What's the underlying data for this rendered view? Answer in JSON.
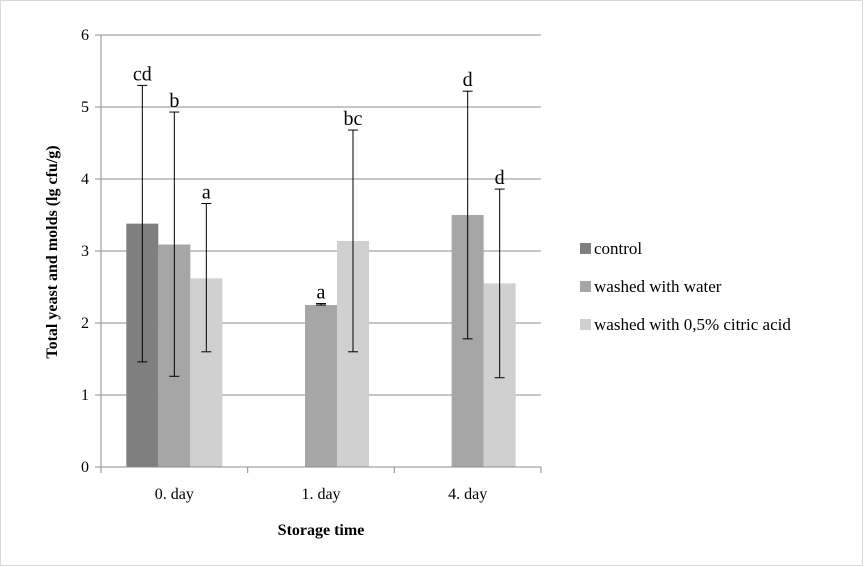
{
  "chart_data": {
    "type": "bar",
    "xlabel": "Storage time",
    "ylabel": "Total yeast and molds (lg cfu/g)",
    "ylim": [
      0,
      6
    ],
    "yticks": [
      "0",
      "1",
      "2",
      "3",
      "4",
      "5",
      "6"
    ],
    "grid": true,
    "legend_position": "right",
    "categories": [
      "0. day",
      "1. day",
      "4. day"
    ],
    "series": [
      {
        "name": "control",
        "color": "#7f7f7f",
        "values": [
          3.38,
          null,
          null
        ],
        "errors": [
          [
            1.46,
            5.3
          ],
          null,
          null
        ],
        "labels": [
          "cd",
          "",
          ""
        ]
      },
      {
        "name": "washed with water",
        "color": "#a6a6a6",
        "values": [
          3.09,
          2.25,
          3.5
        ],
        "errors": [
          [
            1.26,
            4.93
          ],
          [
            2.25,
            2.27
          ],
          [
            1.78,
            5.22
          ]
        ],
        "labels": [
          "b",
          "a",
          "d"
        ]
      },
      {
        "name": "washed with 0,5% citric acid",
        "color": "#d0d0d0",
        "values": [
          2.62,
          3.14,
          2.55
        ],
        "errors": [
          [
            1.6,
            3.66
          ],
          [
            1.6,
            4.68
          ],
          [
            1.24,
            3.86
          ]
        ],
        "labels": [
          "a",
          "bc",
          "d"
        ]
      }
    ]
  }
}
